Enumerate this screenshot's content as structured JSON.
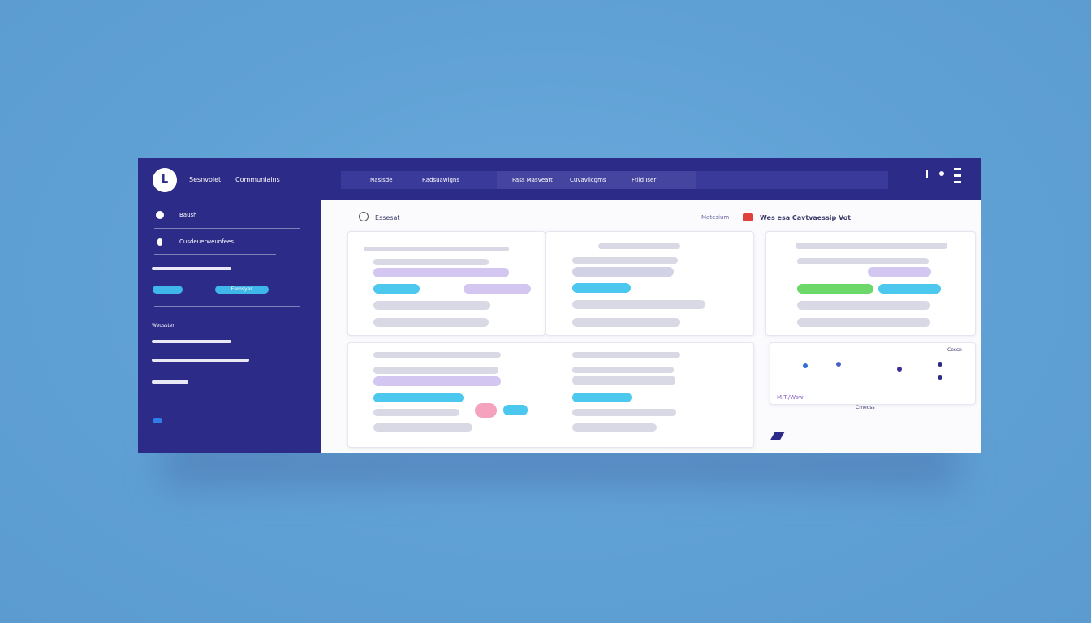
{
  "sidebar": {
    "logo": "L",
    "brand": "Sesnvolet",
    "brand_link": "Communiains",
    "items": [
      "Baush",
      "Cusdeuerweunfees"
    ],
    "pill": "Eemsyes",
    "section": "Weusster"
  },
  "topbar": {
    "tabs": [
      "Nasisde",
      "Radsuawigns",
      "Pass Masveatt",
      "Cuvaviicgms",
      "Ftiid Iser"
    ]
  },
  "content": {
    "header_title": "Essesat",
    "header_link": "Matesium",
    "header_notice": "Wes esa Cavtvaessip Vot",
    "chart_label": "Cesse",
    "chart_caption": "M.T./Wsw",
    "chart_note": "Cmeoss"
  }
}
